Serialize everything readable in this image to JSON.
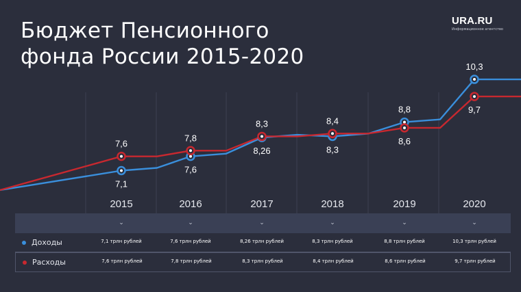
{
  "title_line1": "Бюджет Пенсионного",
  "title_line2": "фонда России 2015-2020",
  "logo": {
    "main": "URA.RU",
    "sub": "Информационное агентство"
  },
  "colors": {
    "background": "#2b2e3c",
    "income": "#3a8fdc",
    "expense": "#c8282f"
  },
  "chart_data": {
    "type": "line",
    "title": "Бюджет Пенсионного фонда России 2015-2020",
    "categories": [
      "2015",
      "2016",
      "2017",
      "2018",
      "2019",
      "2020"
    ],
    "series": [
      {
        "name": "Доходы",
        "values": [
          7.1,
          7.6,
          8.26,
          8.3,
          8.8,
          10.3
        ],
        "labels": [
          "7,1",
          "7,6",
          "8,26",
          "8,3",
          "8,8",
          "10,3"
        ]
      },
      {
        "name": "Расходы",
        "values": [
          7.6,
          7.8,
          8.3,
          8.4,
          8.6,
          9.7
        ],
        "labels": [
          "7,6",
          "7,8",
          "8,3",
          "8,4",
          "8,6",
          "9,7"
        ]
      }
    ],
    "unit": "трлн рублей",
    "legend": "bottom-table",
    "grid": false
  },
  "table": {
    "rows": [
      {
        "name": "Доходы",
        "cells": [
          "7,1 трлн рублей",
          "7,6 трлн рублей",
          "8,26 трлн рублей",
          "8,3 трлн рублей",
          "8,8 трлн рублей",
          "10,3 трлн рублей"
        ]
      },
      {
        "name": "Расходы",
        "cells": [
          "7,6 трлн рублей",
          "7,8 трлн рублей",
          "8,3 трлн рублей",
          "8,4 трлн рублей",
          "8,6 трлн рублей",
          "9,7 трлн рублей"
        ]
      }
    ]
  }
}
